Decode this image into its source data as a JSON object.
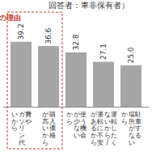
{
  "chart_data": {
    "type": "bar",
    "title": "回答者：車非保有者）",
    "categories": [
      "費や\nガソリン代\nいから",
      "購入価格\nが高いから",
      "使う機会\nが少ない\nから",
      "運転したく\nないから/\n運転に不安\nがあるから",
      "駐車する\n場所がない\nから"
    ],
    "values": [
      39.2,
      36.6,
      32.8,
      27.1,
      25.0
    ],
    "value_labels": [
      "39.2",
      "36.6",
      "32.8",
      "27.1",
      "25.0"
    ],
    "color": "#a6a6a6",
    "ylim": [
      0,
      40
    ],
    "grid": false,
    "data_labels": true,
    "tick_labels": "x",
    "annotation": {
      "text": "の理由",
      "span": [
        0,
        1
      ],
      "color": "#c0392b"
    }
  }
}
